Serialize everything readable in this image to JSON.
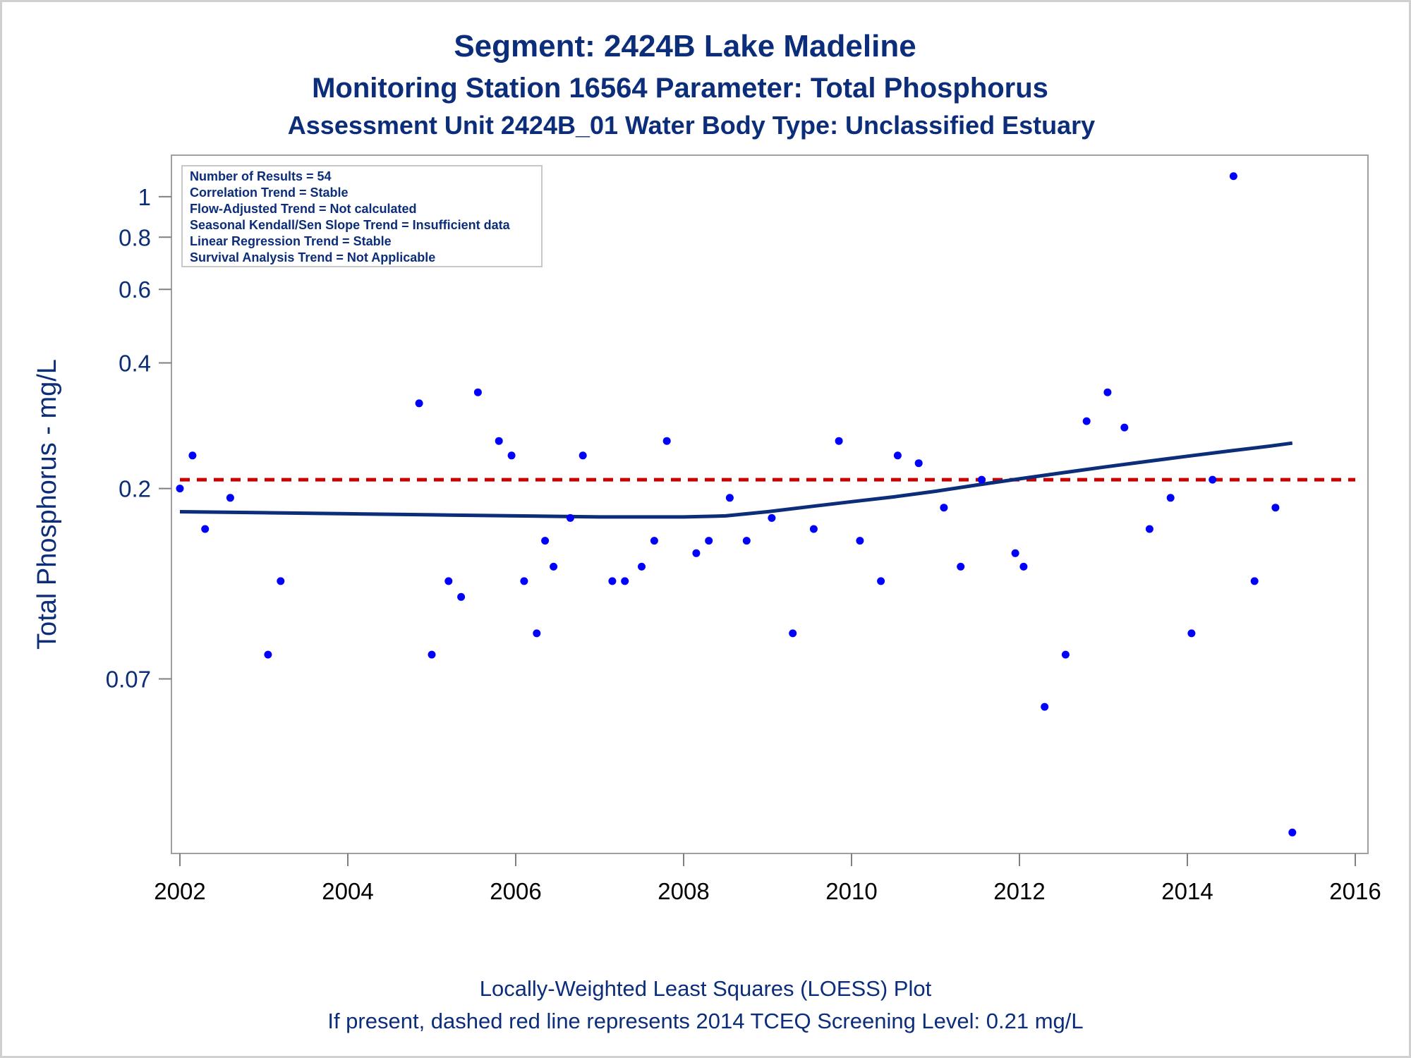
{
  "chart_data": {
    "type": "scatter",
    "title": "Segment: 2424B  Lake Madeline",
    "subtitle": "Monitoring Station 16564 Parameter: Total Phosphorus",
    "subtitle2": "Assessment Unit 2424B_01   Water Body Type: Unclassified Estuary",
    "xlabel": "",
    "ylabel": "Total Phosphorus - mg/L",
    "yscale": "log",
    "xlim": [
      2002,
      2016
    ],
    "ylim": [
      0.028,
      1.15
    ],
    "xticks": [
      "2002",
      "2004",
      "2006",
      "2008",
      "2010",
      "2012",
      "2014",
      "2016"
    ],
    "yticks": [
      {
        "value": 1,
        "label": "1"
      },
      {
        "value": 0.8,
        "label": "0.8"
      },
      {
        "value": 0.6,
        "label": "0.6"
      },
      {
        "value": 0.4,
        "label": "0.4"
      },
      {
        "value": 0.2,
        "label": "0.2"
      },
      {
        "value": 0.07,
        "label": "0.07"
      }
    ],
    "grid": false,
    "stats_box": [
      "Number of Results = 54",
      "Correlation Trend = Stable",
      "Flow-Adjusted Trend = Not calculated",
      "Seasonal Kendall/Sen Slope Trend = Insufficient data",
      "Linear Regression Trend = Stable",
      "Survival Analysis Trend = Not Applicable"
    ],
    "stats_box_placement": "top-left",
    "screening_level": {
      "value": 0.21,
      "color": "#cc0000",
      "style": "dashed"
    },
    "series": [
      {
        "kind": "points",
        "color": "#0000ff",
        "x": [
          2002.0,
          2002.15,
          2002.3,
          2002.6,
          2003.05,
          2003.2,
          2004.85,
          2005.0,
          2005.2,
          2005.35,
          2005.55,
          2005.8,
          2005.95,
          2006.1,
          2006.25,
          2006.35,
          2006.45,
          2006.65,
          2006.8,
          2007.15,
          2007.3,
          2007.5,
          2007.65,
          2007.8,
          2008.15,
          2008.3,
          2008.55,
          2008.75,
          2009.05,
          2009.3,
          2009.55,
          2009.85,
          2010.1,
          2010.35,
          2010.55,
          2010.8,
          2011.1,
          2011.3,
          2011.55,
          2011.95,
          2012.05,
          2012.3,
          2012.55,
          2012.8,
          2013.05,
          2013.25,
          2013.55,
          2013.8,
          2014.05,
          2014.3,
          2014.55,
          2014.8,
          2015.05,
          2015.25
        ],
        "y": [
          0.2,
          0.24,
          0.16,
          0.19,
          0.08,
          0.12,
          0.32,
          0.08,
          0.12,
          0.11,
          0.34,
          0.26,
          0.24,
          0.12,
          0.09,
          0.15,
          0.13,
          0.17,
          0.24,
          0.12,
          0.12,
          0.13,
          0.15,
          0.26,
          0.14,
          0.15,
          0.19,
          0.15,
          0.17,
          0.09,
          0.16,
          0.26,
          0.15,
          0.12,
          0.24,
          0.23,
          0.18,
          0.13,
          0.21,
          0.14,
          0.13,
          0.06,
          0.08,
          0.29,
          0.34,
          0.28,
          0.16,
          0.19,
          0.09,
          0.21,
          1.12,
          0.12,
          0.18,
          0.03
        ]
      },
      {
        "kind": "line",
        "color": "#0c2d7a",
        "x": [
          2002.0,
          2003.0,
          2004.0,
          2005.0,
          2006.0,
          2007.0,
          2008.0,
          2008.5,
          2009.0,
          2009.5,
          2010.0,
          2010.5,
          2011.0,
          2011.5,
          2012.0,
          2012.5,
          2013.0,
          2013.5,
          2014.0,
          2014.5,
          2015.0,
          2015.25
        ],
        "y": [
          0.176,
          0.175,
          0.174,
          0.173,
          0.172,
          0.171,
          0.171,
          0.172,
          0.176,
          0.181,
          0.186,
          0.191,
          0.197,
          0.204,
          0.211,
          0.218,
          0.225,
          0.232,
          0.239,
          0.246,
          0.253,
          0.257
        ]
      }
    ]
  },
  "footer": {
    "line1": "Locally-Weighted Least Squares (LOESS) Plot",
    "line2": "If present, dashed red line represents 2014 TCEQ Screening Level: 0.21 mg/L"
  }
}
